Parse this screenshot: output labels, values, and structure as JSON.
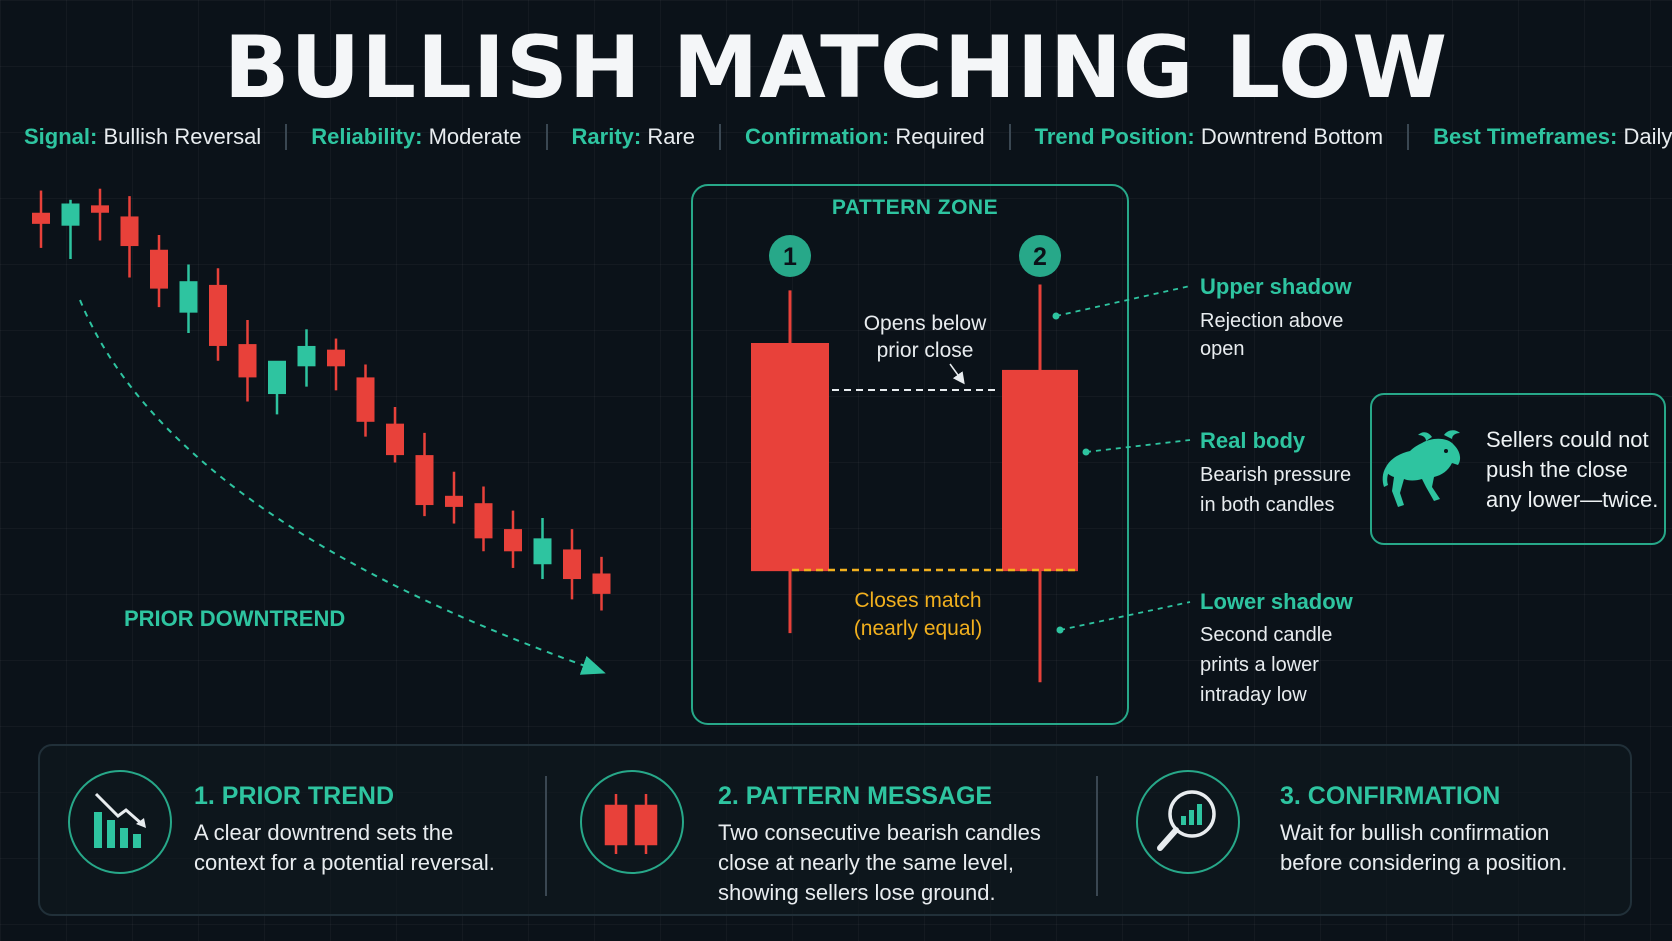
{
  "title": "BULLISH MATCHING LOW",
  "meta": [
    {
      "key": "Signal:",
      "value": "Bullish Reversal"
    },
    {
      "key": "Reliability:",
      "value": "Moderate"
    },
    {
      "key": "Rarity:",
      "value": "Rare"
    },
    {
      "key": "Confirmation:",
      "value": "Required"
    },
    {
      "key": "Trend Position:",
      "value": "Downtrend Bottom"
    },
    {
      "key": "Best Timeframes:",
      "value": "Daily+"
    }
  ],
  "colors": {
    "bull": "#2ec4a0",
    "bear": "#e8413a",
    "accent": "#2ec4a0",
    "match_line": "#f2b01e",
    "text": "#e8ecef"
  },
  "chart_data": {
    "type": "candlestick",
    "prior_trend_label": "PRIOR DOWNTREND",
    "prior_candles": [
      {
        "o": 0.5,
        "h": 1.7,
        "l": -1.4,
        "c": -0.1
      },
      {
        "o": -0.2,
        "h": 1.2,
        "l": -2.0,
        "c": 1.0
      },
      {
        "o": 0.9,
        "h": 1.8,
        "l": -1.0,
        "c": 0.5
      },
      {
        "o": 0.3,
        "h": 1.4,
        "l": -3.0,
        "c": -1.3
      },
      {
        "o": -1.5,
        "h": -0.7,
        "l": -4.6,
        "c": -3.6
      },
      {
        "o": -4.9,
        "h": -2.3,
        "l": -6.0,
        "c": -3.2
      },
      {
        "o": -3.4,
        "h": -2.5,
        "l": -7.5,
        "c": -6.7
      },
      {
        "o": -6.6,
        "h": -5.3,
        "l": -9.7,
        "c": -8.4
      },
      {
        "o": -9.3,
        "h": -7.9,
        "l": -10.4,
        "c": -7.5
      },
      {
        "o": -7.8,
        "h": -5.8,
        "l": -8.9,
        "c": -6.7
      },
      {
        "o": -6.9,
        "h": -6.3,
        "l": -9.1,
        "c": -7.8
      },
      {
        "o": -8.4,
        "h": -7.7,
        "l": -11.6,
        "c": -10.8
      },
      {
        "o": -10.9,
        "h": -10.0,
        "l": -13.0,
        "c": -12.6
      },
      {
        "o": -12.6,
        "h": -11.4,
        "l": -15.9,
        "c": -15.3
      },
      {
        "o": -14.8,
        "h": -13.5,
        "l": -16.3,
        "c": -15.4
      },
      {
        "o": -15.2,
        "h": -14.3,
        "l": -17.8,
        "c": -17.1
      },
      {
        "o": -16.6,
        "h": -15.6,
        "l": -18.7,
        "c": -17.8
      },
      {
        "o": -18.5,
        "h": -16.0,
        "l": -19.3,
        "c": -17.1
      },
      {
        "o": -17.7,
        "h": -16.6,
        "l": -20.4,
        "c": -19.3
      },
      {
        "o": -19.0,
        "h": -18.1,
        "l": -21.0,
        "c": -20.1
      }
    ],
    "pattern_candles": [
      {
        "label": "1",
        "o": 0.0,
        "h": 4.5,
        "l": -24.8,
        "c": -19.5
      },
      {
        "label": "2",
        "o": -2.3,
        "h": 5.0,
        "l": -29.0,
        "c": -19.5
      }
    ]
  },
  "pattern_zone": {
    "title": "PATTERN ZONE",
    "opens_below": [
      "Opens below",
      "prior close"
    ],
    "closes_match": [
      "Closes match",
      "(nearly equal)"
    ]
  },
  "annotations": [
    {
      "title": "Upper shadow",
      "lines": [
        "Rejection above",
        "open"
      ]
    },
    {
      "title": "Real body",
      "lines": [
        "Bearish pressure",
        "in both candles"
      ]
    },
    {
      "title": "Lower shadow",
      "lines": [
        "Second candle",
        "prints a lower",
        "intraday low"
      ]
    }
  ],
  "bull_box": {
    "text": "Sellers could not push the close any lower—twice.",
    "icon": "bull-icon"
  },
  "cards": [
    {
      "title": "1. PRIOR TREND",
      "lines": [
        "A clear downtrend sets the",
        "context for a potential reversal."
      ],
      "icon": "downtrend-chart-icon"
    },
    {
      "title": "2. PATTERN MESSAGE",
      "lines": [
        "Two consecutive bearish candles",
        "close at nearly the same level,",
        "showing sellers lose ground."
      ],
      "icon": "two-candles-icon"
    },
    {
      "title": "3. CONFIRMATION",
      "lines": [
        "Wait for bullish confirmation",
        "before considering a position."
      ],
      "icon": "magnifier-chart-icon"
    }
  ]
}
